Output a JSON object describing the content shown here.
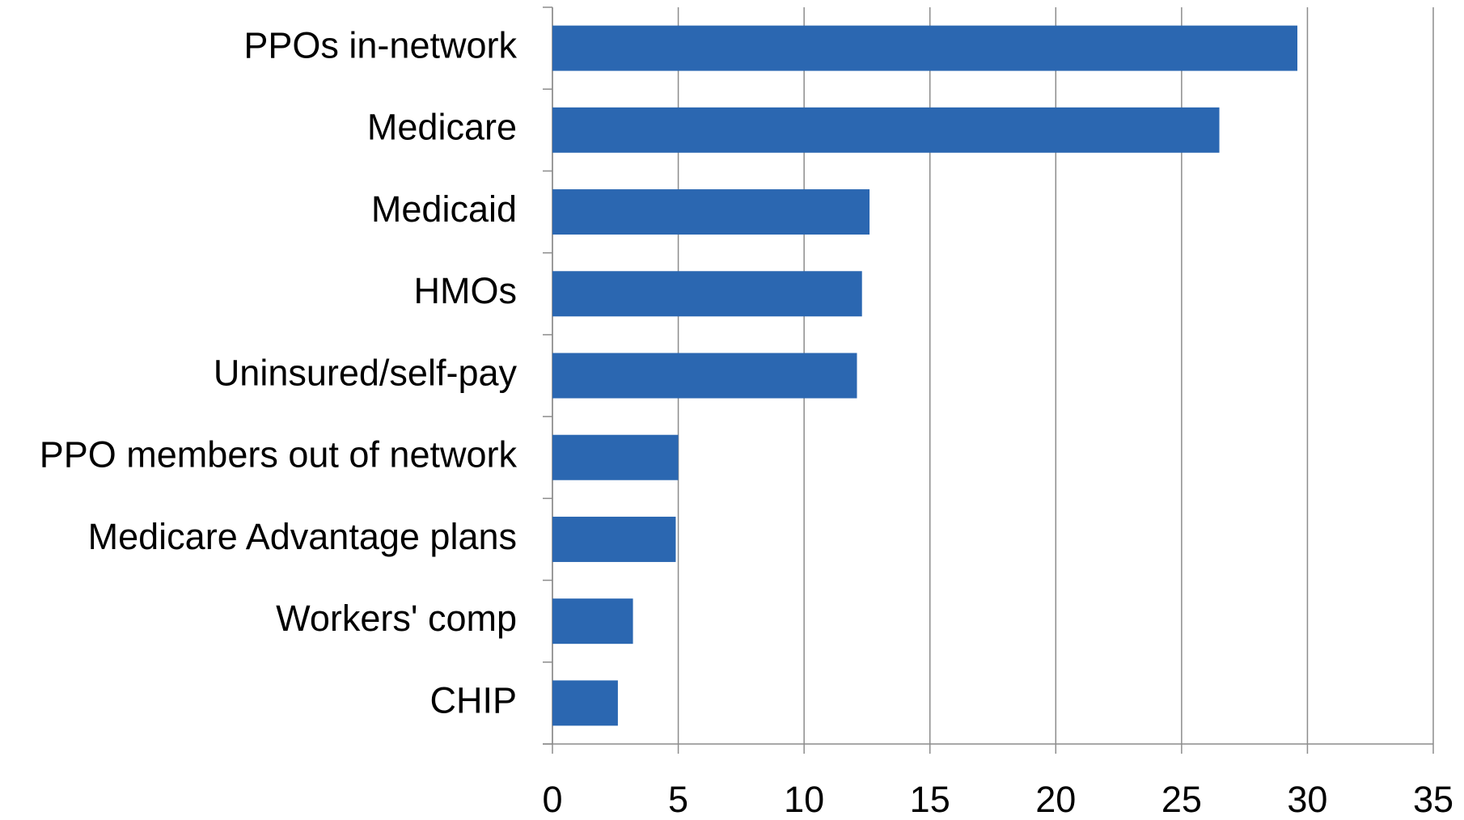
{
  "chart_data": {
    "type": "hbar",
    "categories": [
      "PPOs in-network",
      "Medicare",
      "Medicaid",
      "HMOs",
      "Uninsured/self-pay",
      "PPO members out of network",
      "Medicare Advantage plans",
      "Workers' comp",
      "CHIP"
    ],
    "values": [
      29.6,
      26.5,
      12.6,
      12.3,
      12.1,
      5.0,
      4.9,
      3.2,
      2.6
    ],
    "color": "#2b67b1",
    "xlim": [
      0,
      35
    ],
    "xticks": [
      0,
      5,
      10,
      15,
      20,
      25,
      30,
      35
    ],
    "grid": true
  }
}
